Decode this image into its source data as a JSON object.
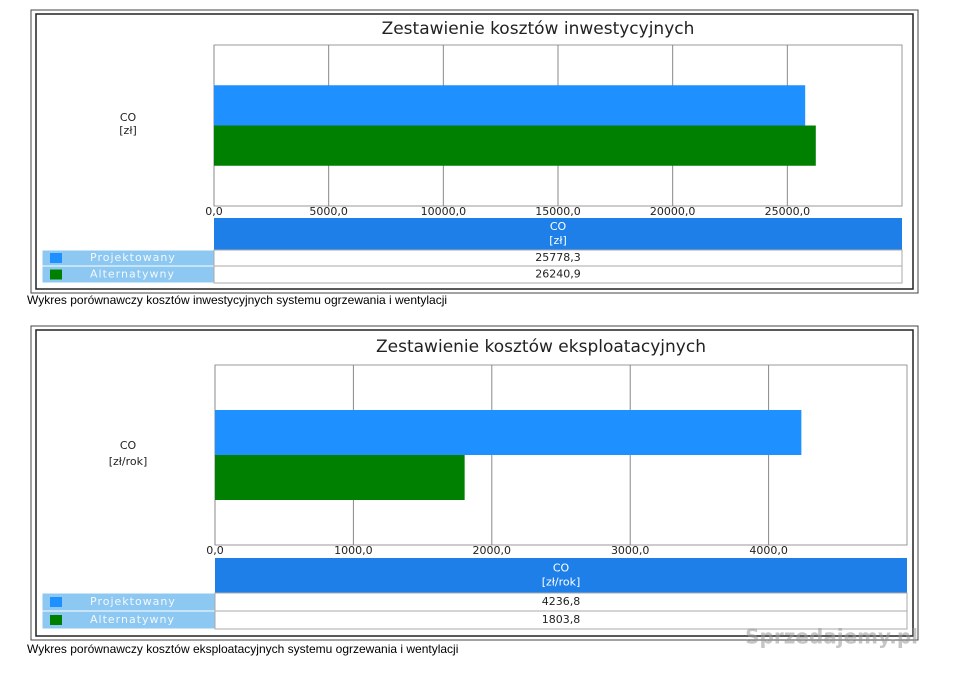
{
  "chart_data": [
    {
      "type": "bar",
      "orientation": "horizontal",
      "title": "Zestawienie kosztów inwestycyjnych",
      "categories": [
        "CO"
      ],
      "unit": "[zł]",
      "series": [
        {
          "name": "Projektowany",
          "color": "#1e90ff",
          "values": [
            25778.3
          ],
          "value_labels": [
            "25778,3"
          ]
        },
        {
          "name": "Alternatywny",
          "color": "#008000",
          "values": [
            26240.9
          ],
          "value_labels": [
            "26240,9"
          ]
        }
      ],
      "xlim": [
        0,
        30000
      ],
      "xticks": [
        {
          "value": 0,
          "label": "0,0"
        },
        {
          "value": 5000,
          "label": "5000,0"
        },
        {
          "value": 10000,
          "label": "10000,0"
        },
        {
          "value": 15000,
          "label": "15000,0"
        },
        {
          "value": 20000,
          "label": "20000,0"
        },
        {
          "value": 25000,
          "label": "25000,0"
        }
      ],
      "grid": true,
      "caption": "Wykres porównawczy kosztów inwestycyjnych systemu ogrzewania i wentylacji"
    },
    {
      "type": "bar",
      "orientation": "horizontal",
      "title": "Zestawienie kosztów eksploatacyjnych",
      "categories": [
        "CO"
      ],
      "unit": "[zł/rok]",
      "series": [
        {
          "name": "Projektowany",
          "color": "#1e90ff",
          "values": [
            4236.8
          ],
          "value_labels": [
            "4236,8"
          ]
        },
        {
          "name": "Alternatywny",
          "color": "#008000",
          "values": [
            1803.8
          ],
          "value_labels": [
            "1803,8"
          ]
        }
      ],
      "xlim": [
        0,
        5000
      ],
      "xticks": [
        {
          "value": 0,
          "label": "0,0"
        },
        {
          "value": 1000,
          "label": "1000,0"
        },
        {
          "value": 2000,
          "label": "2000,0"
        },
        {
          "value": 3000,
          "label": "3000,0"
        },
        {
          "value": 4000,
          "label": "4000,0"
        }
      ],
      "grid": true,
      "caption": "Wykres porównawczy kosztów eksploatacyjnych systemu ogrzewania i wentylacji"
    }
  ],
  "watermark": "Sprzedajemy.pl"
}
